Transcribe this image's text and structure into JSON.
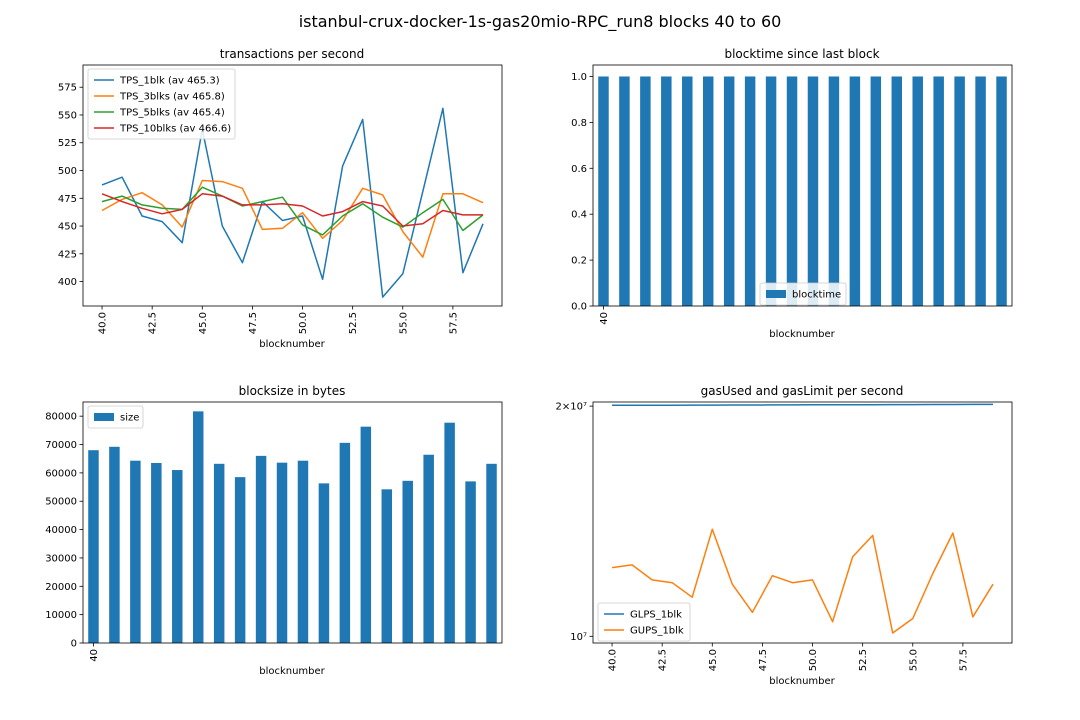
{
  "figure_title": "istanbul-crux-docker-1s-gas20mio-RPC_run8 blocks 40 to 60",
  "colors": {
    "blue": "#1f77b4",
    "orange": "#ff7f0e",
    "green": "#2ca02c",
    "red": "#d62728"
  },
  "chart_data": [
    {
      "type": "line",
      "title": "transactions per second",
      "xlabel": "blocknumber",
      "ylabel": "",
      "xlim": [
        39.05,
        59.95
      ],
      "ylim": [
        378,
        595
      ],
      "xticks": [
        "40.0",
        "42.5",
        "45.0",
        "47.5",
        "50.0",
        "52.5",
        "55.0",
        "57.5"
      ],
      "yticks": [
        "400",
        "425",
        "450",
        "475",
        "500",
        "525",
        "550",
        "575"
      ],
      "x": [
        40,
        41,
        42,
        43,
        44,
        45,
        46,
        47,
        48,
        49,
        50,
        51,
        52,
        53,
        54,
        55,
        56,
        57,
        58,
        59
      ],
      "legend_position": "top-left",
      "series": [
        {
          "name": "TPS_1blk (av 465.3)",
          "color": "#1f77b4",
          "values": [
            487,
            494,
            459,
            454,
            435,
            537,
            450,
            417,
            472,
            455,
            459,
            402,
            504,
            546,
            386,
            407,
            481,
            556,
            408,
            452
          ]
        },
        {
          "name": "TPS_3blks (av 465.8)",
          "color": "#ff7f0e",
          "values": [
            464,
            474,
            480,
            469,
            449,
            491,
            490,
            484,
            447,
            448,
            462,
            439,
            455,
            484,
            478,
            445,
            422,
            479,
            479,
            471
          ]
        },
        {
          "name": "TPS_5blks (av 465.4)",
          "color": "#2ca02c",
          "values": [
            472,
            477,
            469,
            466,
            465,
            485,
            477,
            468,
            472,
            476,
            451,
            442,
            459,
            470,
            458,
            449,
            462,
            474,
            446,
            460
          ]
        },
        {
          "name": "TPS_10blks (av 466.6)",
          "color": "#d62728",
          "values": [
            479,
            472,
            466,
            461,
            465,
            479,
            477,
            469,
            469,
            470,
            468,
            459,
            463,
            472,
            468,
            450,
            452,
            464,
            460,
            460
          ]
        }
      ]
    },
    {
      "type": "bar",
      "title": "blocktime since last block",
      "xlabel": "blocknumber",
      "ylabel": "",
      "ylim": [
        0,
        1.05
      ],
      "yticks": [
        "0.0",
        "0.2",
        "0.4",
        "0.6",
        "0.8",
        "1.0"
      ],
      "xticks": [
        "40"
      ],
      "legend_position": "lower center",
      "series": [
        {
          "name": "blocktime",
          "color": "#1f77b4",
          "values": [
            1,
            1,
            1,
            1,
            1,
            1,
            1,
            1,
            1,
            1,
            1,
            1,
            1,
            1,
            1,
            1,
            1,
            1,
            1,
            1
          ]
        }
      ]
    },
    {
      "type": "bar",
      "title": "blocksize in bytes",
      "xlabel": "blocknumber",
      "ylabel": "",
      "ylim": [
        0,
        85000
      ],
      "yticks": [
        "0",
        "10000",
        "20000",
        "30000",
        "40000",
        "50000",
        "60000",
        "70000",
        "80000"
      ],
      "xticks": [
        "40"
      ],
      "legend_position": "top-left",
      "series": [
        {
          "name": "size",
          "color": "#1f77b4",
          "values": [
            68000,
            69200,
            64300,
            63500,
            61000,
            81700,
            63200,
            58500,
            66000,
            63600,
            64300,
            56300,
            70600,
            76300,
            54200,
            57200,
            66400,
            77700,
            57000,
            63200
          ]
        }
      ]
    },
    {
      "type": "line",
      "title": "gasUsed and gasLimit per second",
      "xlabel": "blocknumber",
      "ylabel": "",
      "yscale": "log",
      "xlim": [
        39.05,
        59.95
      ],
      "ylim": [
        9800000,
        20250000
      ],
      "xticks": [
        "40.0",
        "42.5",
        "45.0",
        "47.5",
        "50.0",
        "52.5",
        "55.0",
        "57.5"
      ],
      "ytick_labels": [
        {
          "label": "2×10⁷",
          "value": 20000000
        },
        {
          "label": "10⁷",
          "value": 10000000
        }
      ],
      "x": [
        40,
        41,
        42,
        43,
        44,
        45,
        46,
        47,
        48,
        49,
        50,
        51,
        52,
        53,
        54,
        55,
        56,
        57,
        58,
        59
      ],
      "legend_position": "bottom-left",
      "series": [
        {
          "name": "GLPS_1blk",
          "color": "#1f77b4",
          "values": [
            20049000,
            20052000,
            20055000,
            20058000,
            20061000,
            20064000,
            20067000,
            20070000,
            20073000,
            20076000,
            20079000,
            20082000,
            20085000,
            20088000,
            20091000,
            20094000,
            20097000,
            20100000,
            20103000,
            20106000
          ]
        },
        {
          "name": "GUPS_1blk",
          "color": "#ff7f0e",
          "values": [
            12300000,
            12400000,
            11850000,
            11750000,
            11250000,
            13800000,
            11700000,
            10750000,
            12000000,
            11750000,
            11850000,
            10450000,
            12700000,
            13550000,
            10100000,
            10550000,
            12080000,
            13650000,
            10600000,
            11700000
          ]
        }
      ]
    }
  ]
}
